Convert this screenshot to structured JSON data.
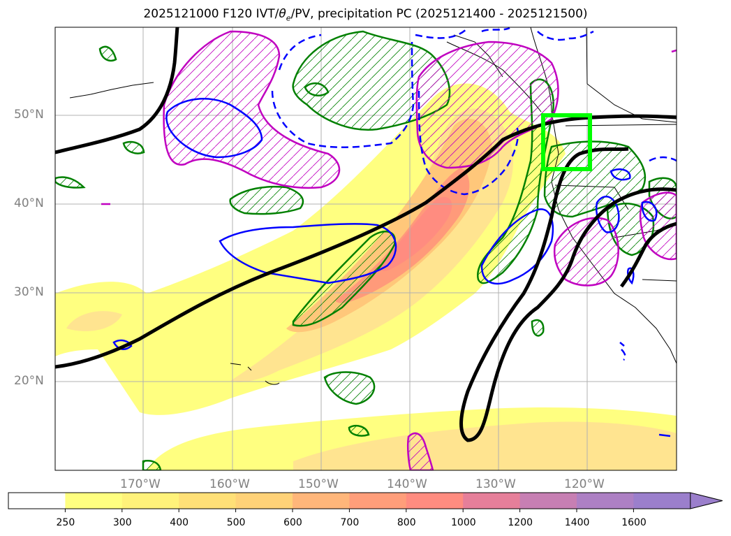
{
  "title": "2025121000 F120 IVT/θe/PV, precipitation PC (2025121400 - 2025121500)",
  "title_parts": {
    "prefix": "2025121000 F120 IVT/",
    "theta": "θ",
    "theta_sub": "e",
    "suffix": "/PV, precipitation PC (2025121400 - 2025121500)"
  },
  "latitude_labels": [
    "50°N",
    "40°N",
    "30°N",
    "20°N"
  ],
  "longitude_labels": [
    "170°W",
    "160°W",
    "150°W",
    "140°W",
    "130°W",
    "120°W"
  ],
  "colorbar": {
    "ticks": [
      "250",
      "300",
      "400",
      "500",
      "600",
      "700",
      "800",
      "1000",
      "1200",
      "1400",
      "1600"
    ],
    "colors": [
      "#ffffff",
      "#ffff80",
      "#fff27a",
      "#ffe077",
      "#ffd278",
      "#ffb67a",
      "#ff9e7a",
      "#ff8c80",
      "#e67f9a",
      "#c77fb3",
      "#ad80c4",
      "#9b7fcc"
    ],
    "extend": "max"
  },
  "colors": {
    "jet": "#000000",
    "pv": "#0000ff",
    "theta_e": "#c000c0",
    "precip": "#008000",
    "box": "#00ff00",
    "coast": "#000000",
    "grid": "#b0b0b0"
  }
}
